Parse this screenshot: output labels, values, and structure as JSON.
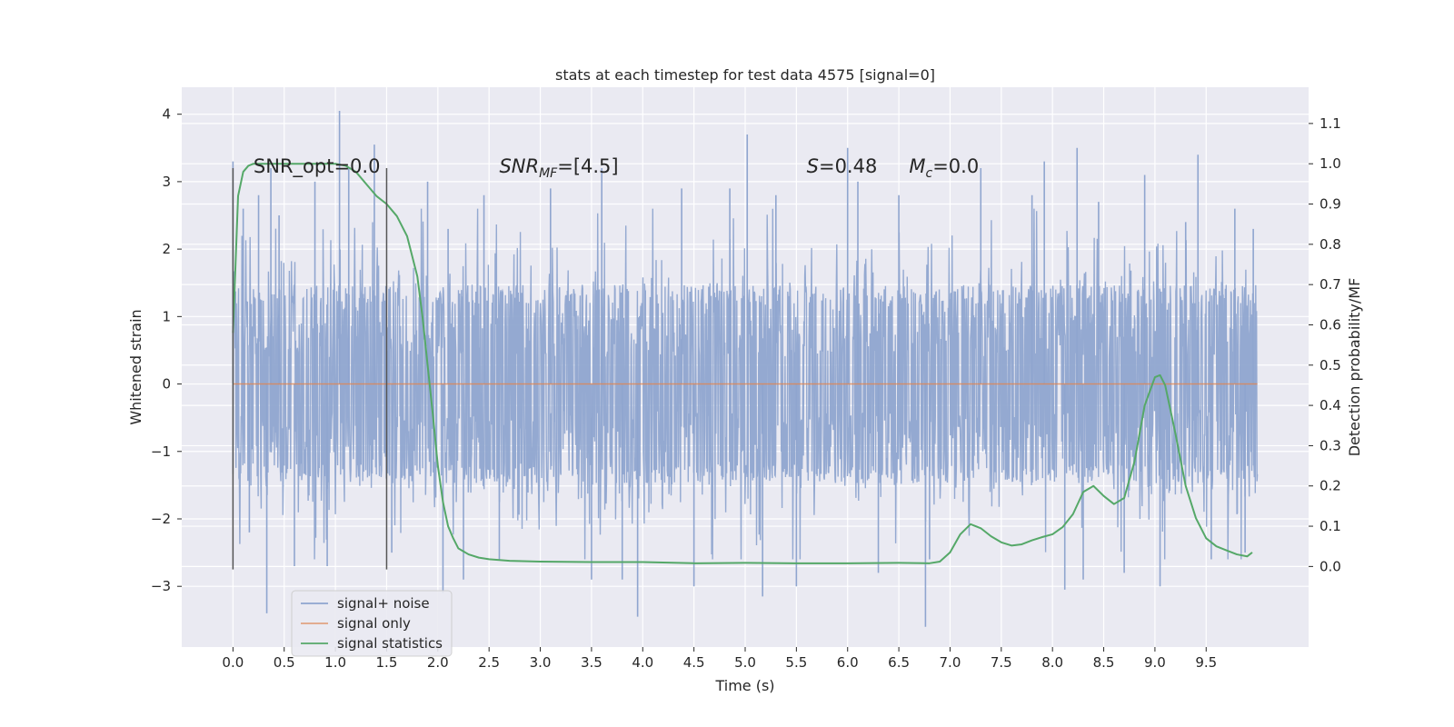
{
  "chart_data": {
    "type": "line",
    "title": "stats at each timestep for test data 4575 [signal=0]",
    "xlabel": "Time (s)",
    "ylabel": "Whitened strain",
    "ylabel_right": "Detection probability/MF",
    "xlim": [
      -0.5,
      10.5
    ],
    "ylim": [
      -3.9,
      4.4
    ],
    "ylim_right": [
      -0.2,
      1.19
    ],
    "grid": true,
    "x_ticks": [
      "0.0",
      "0.5",
      "1.0",
      "1.5",
      "2.0",
      "2.5",
      "3.0",
      "3.5",
      "4.0",
      "4.5",
      "5.0",
      "5.5",
      "6.0",
      "6.5",
      "7.0",
      "7.5",
      "8.0",
      "8.5",
      "9.0",
      "9.5"
    ],
    "y_ticks": [
      "−3",
      "−2",
      "−1",
      "0",
      "1",
      "2",
      "3",
      "4"
    ],
    "y_ticks_right": [
      "0.0",
      "0.1",
      "0.2",
      "0.3",
      "0.4",
      "0.5",
      "0.6",
      "0.7",
      "0.8",
      "0.9",
      "1.0",
      "1.1"
    ],
    "annotations": [
      {
        "id": "snr_opt",
        "text": "SNR_opt=0.0"
      },
      {
        "id": "snr_mf",
        "text": "SNR",
        "sub": "MF",
        "tail": "=[4.5]"
      },
      {
        "id": "s",
        "text": "S",
        "tail": "=0.48"
      },
      {
        "id": "mc",
        "text": "M",
        "sub": "c",
        "tail": "=0.0"
      }
    ],
    "vertical_markers": [
      0.0,
      1.5
    ],
    "legend_position": "lower-left",
    "series": [
      {
        "name": "signal+ noise",
        "color": "#8fa5cf",
        "axis": "left",
        "x_range": [
          0.0,
          10.0
        ],
        "typical_band": [
          -1.4,
          1.4
        ],
        "x": [
          0.0,
          0.1,
          0.16,
          0.25,
          0.33,
          0.37,
          0.45,
          0.6,
          0.8,
          0.92,
          1.04,
          1.13,
          1.38,
          1.55,
          1.9,
          2.05,
          2.1,
          2.25,
          2.45,
          2.6,
          3.1,
          3.5,
          3.6,
          3.8,
          3.95,
          4.38,
          4.5,
          4.85,
          5.02,
          5.17,
          5.3,
          5.5,
          6.0,
          6.1,
          6.3,
          6.5,
          6.76,
          6.8,
          7.3,
          7.8,
          7.92,
          8.12,
          8.24,
          8.3,
          8.45,
          8.7,
          8.9,
          9.05,
          9.3,
          9.42,
          9.55,
          9.78,
          9.88,
          9.96
        ],
        "y": [
          3.3,
          2.6,
          -2.2,
          2.8,
          -3.4,
          3.2,
          2.5,
          -2.7,
          3.0,
          -2.7,
          4.05,
          3.2,
          3.55,
          -2.5,
          3.0,
          -3.1,
          2.3,
          -2.9,
          2.8,
          -2.6,
          2.9,
          -2.9,
          3.2,
          -2.9,
          -3.45,
          2.9,
          -3.0,
          2.9,
          3.7,
          -3.15,
          2.8,
          -3.0,
          3.5,
          3.0,
          -2.8,
          2.8,
          -3.6,
          -2.6,
          3.2,
          2.8,
          3.3,
          -3.05,
          3.5,
          -2.9,
          2.7,
          -2.8,
          3.1,
          -3.0,
          2.4,
          3.4,
          -2.6,
          2.6,
          -2.5,
          2.3
        ]
      },
      {
        "name": "signal only",
        "color": "#dd8452",
        "axis": "left",
        "x": [
          0.0,
          10.0
        ],
        "y": [
          0.0,
          0.0
        ]
      },
      {
        "name": "signal statistics",
        "color": "#55a868",
        "axis": "right",
        "x": [
          0.0,
          0.05,
          0.1,
          0.15,
          0.2,
          0.3,
          0.5,
          0.8,
          1.0,
          1.1,
          1.2,
          1.3,
          1.4,
          1.5,
          1.6,
          1.7,
          1.8,
          1.85,
          1.9,
          1.95,
          2.0,
          2.05,
          2.1,
          2.15,
          2.2,
          2.3,
          2.4,
          2.5,
          2.7,
          3.0,
          3.5,
          4.0,
          4.5,
          5.0,
          5.5,
          6.0,
          6.5,
          6.8,
          6.9,
          7.0,
          7.1,
          7.2,
          7.3,
          7.4,
          7.5,
          7.6,
          7.7,
          7.8,
          7.9,
          8.0,
          8.1,
          8.2,
          8.3,
          8.4,
          8.5,
          8.6,
          8.7,
          8.8,
          8.9,
          9.0,
          9.05,
          9.1,
          9.2,
          9.3,
          9.4,
          9.5,
          9.6,
          9.7,
          9.8,
          9.9,
          9.95
        ],
        "y": [
          0.58,
          0.92,
          0.98,
          0.995,
          1.0,
          1.0,
          1.0,
          1.0,
          1.0,
          0.995,
          0.98,
          0.95,
          0.92,
          0.9,
          0.87,
          0.82,
          0.72,
          0.62,
          0.5,
          0.38,
          0.25,
          0.16,
          0.1,
          0.07,
          0.045,
          0.03,
          0.022,
          0.018,
          0.014,
          0.012,
          0.011,
          0.011,
          0.008,
          0.009,
          0.008,
          0.008,
          0.009,
          0.008,
          0.012,
          0.035,
          0.08,
          0.105,
          0.095,
          0.075,
          0.06,
          0.052,
          0.055,
          0.065,
          0.073,
          0.08,
          0.098,
          0.13,
          0.185,
          0.2,
          0.175,
          0.155,
          0.17,
          0.26,
          0.4,
          0.47,
          0.475,
          0.45,
          0.33,
          0.2,
          0.12,
          0.07,
          0.05,
          0.04,
          0.03,
          0.025,
          0.035
        ]
      }
    ]
  }
}
